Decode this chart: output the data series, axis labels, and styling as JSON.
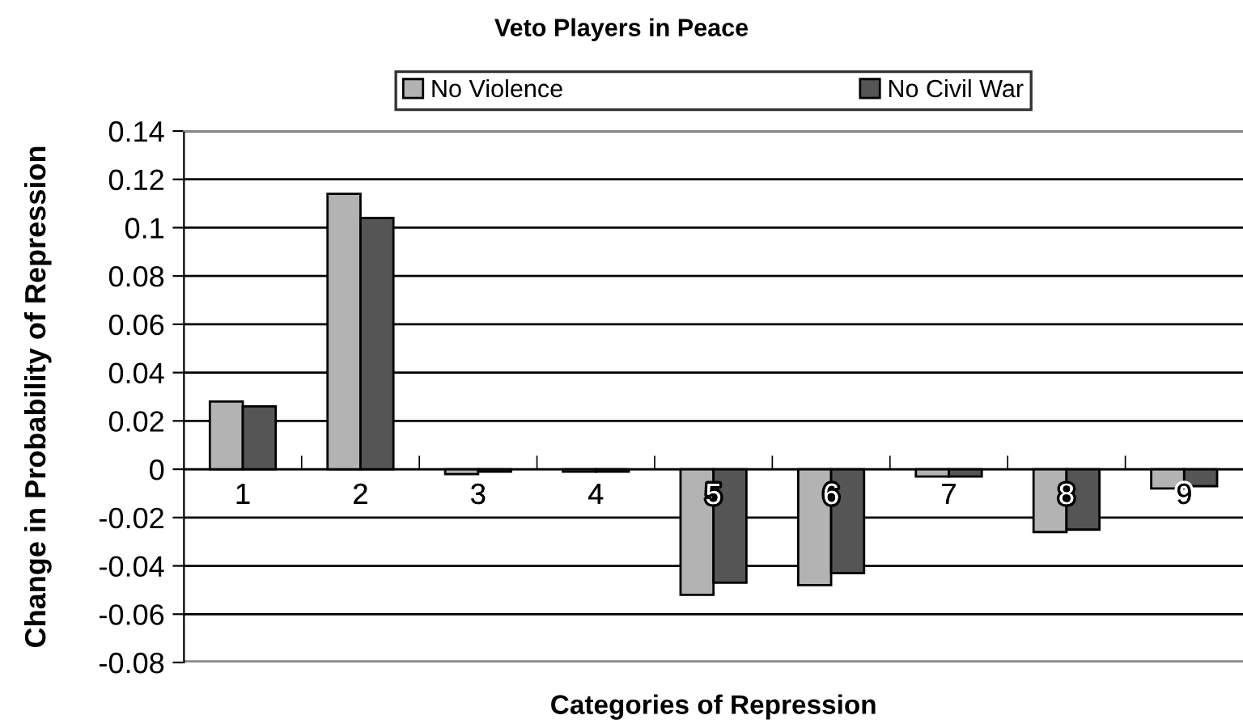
{
  "chart_data": {
    "type": "bar",
    "title": "Veto Players in Peace",
    "xlabel": "Categories of Repression",
    "ylabel": "Change in Probability of Repression",
    "categories": [
      "1",
      "2",
      "3",
      "4",
      "5",
      "6",
      "7",
      "8",
      "9"
    ],
    "series": [
      {
        "name": "No Violence",
        "color": "#b3b3b3",
        "values": [
          0.028,
          0.114,
          -0.002,
          -0.001,
          -0.052,
          -0.048,
          -0.003,
          -0.026,
          -0.008
        ]
      },
      {
        "name": "No Civil War",
        "color": "#555555",
        "values": [
          0.026,
          0.104,
          -0.001,
          -0.001,
          -0.047,
          -0.043,
          -0.003,
          -0.025,
          -0.007
        ]
      }
    ],
    "ylim": [
      -0.08,
      0.14
    ],
    "yticks": [
      -0.08,
      -0.06,
      -0.04,
      -0.02,
      0,
      0.02,
      0.04,
      0.06,
      0.08,
      0.1,
      0.12,
      0.14
    ],
    "grid": "y",
    "legend": "top"
  }
}
